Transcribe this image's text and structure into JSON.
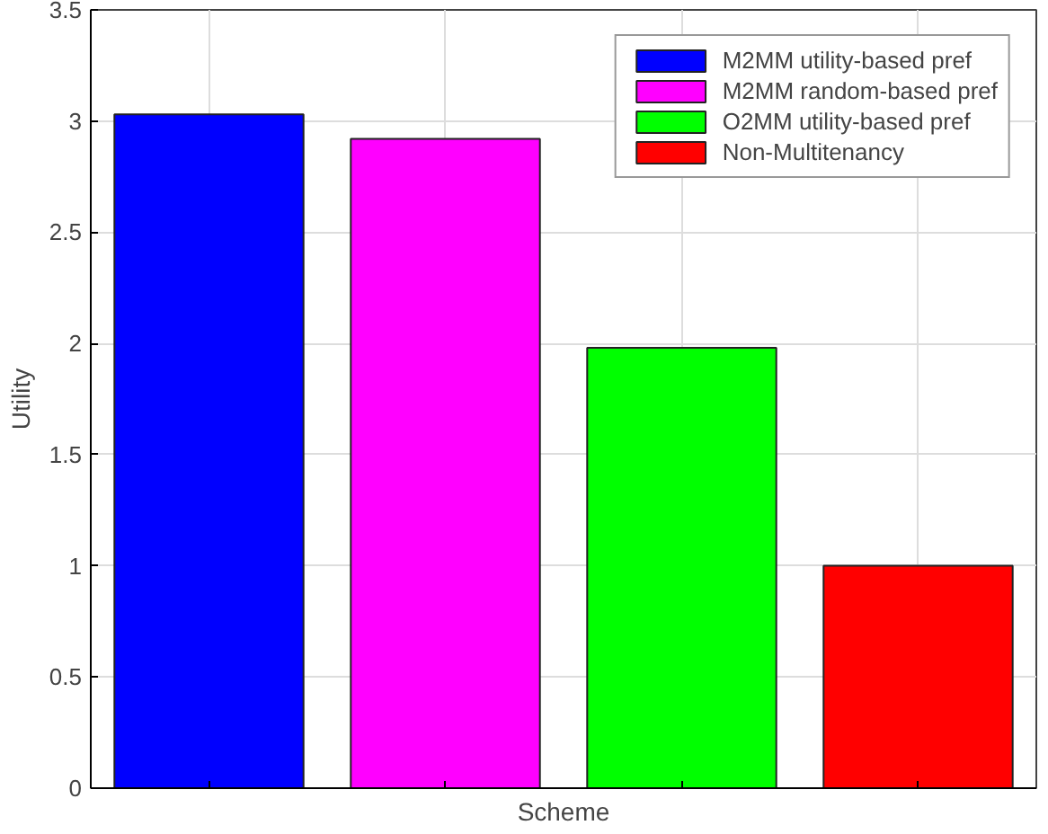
{
  "chart_data": {
    "type": "bar",
    "xlabel": "Scheme",
    "ylabel": "Utility",
    "categories": [
      null,
      null,
      null,
      null
    ],
    "series": [
      {
        "name": "M2MM utility-based pref",
        "color": "#0000ff",
        "values": [
          3.03,
          null,
          null,
          null
        ]
      },
      {
        "name": "M2MM random-based pref",
        "color": "#ff00ff",
        "values": [
          null,
          2.92,
          null,
          null
        ]
      },
      {
        "name": "O2MM utility-based pref",
        "color": "#00ff00",
        "values": [
          null,
          null,
          1.98,
          null
        ]
      },
      {
        "name": "Non-Multitenancy",
        "color": "#ff0000",
        "values": [
          null,
          null,
          null,
          1.0
        ]
      }
    ],
    "ylim": [
      0,
      3.5
    ],
    "yticks": [
      0,
      0.5,
      1,
      1.5,
      2,
      2.5,
      3,
      3.5
    ],
    "grid": true,
    "legend": "top right"
  }
}
